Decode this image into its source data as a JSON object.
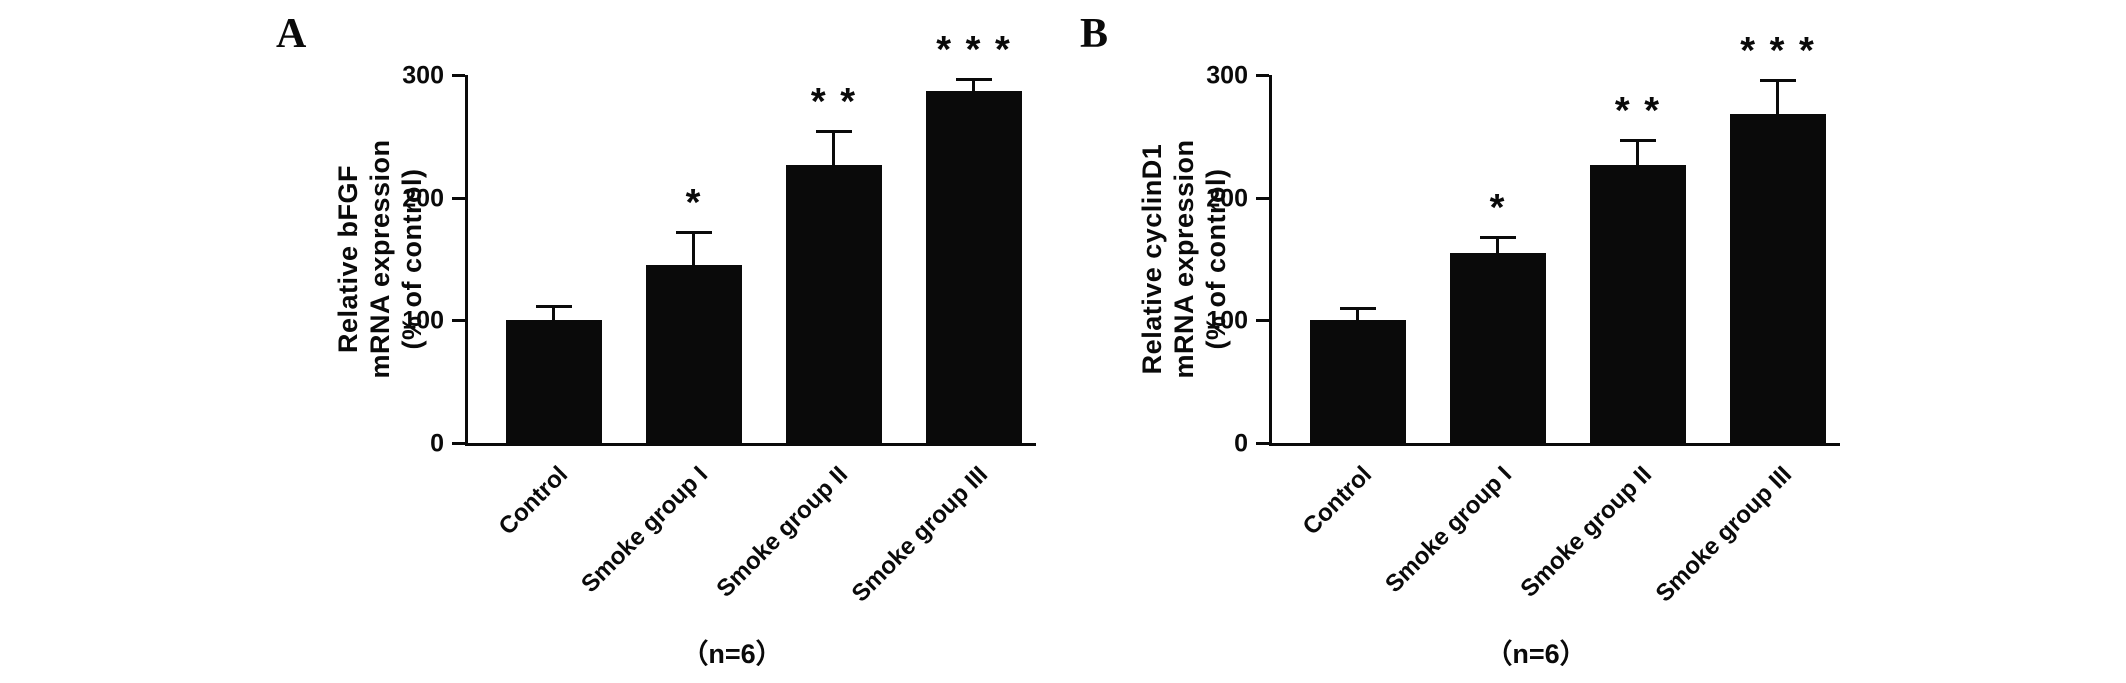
{
  "panels": [
    {
      "label": "A"
    },
    {
      "label": "B"
    }
  ],
  "chart_data": [
    {
      "type": "bar",
      "panel": "A",
      "title": "",
      "ylabel": "Relative bFGF mRNA expression (% of control)",
      "ylabel_lines": [
        "Relative bFGF",
        "mRNA expression",
        "(% of control)"
      ],
      "xlabel": "",
      "categories": [
        "Control",
        "Smoke group I",
        "Smoke group II",
        "Smoke group III"
      ],
      "values": [
        100,
        145,
        227,
        287
      ],
      "errors_upper": [
        12,
        27,
        27,
        10
      ],
      "significance": [
        "",
        "*",
        "* *",
        "* * *"
      ],
      "ylim": [
        0,
        300
      ],
      "yticks": [
        0,
        100,
        200,
        300
      ],
      "note": "（n=6）",
      "bar_color": "#0a0a0a",
      "grid": false,
      "legend": false
    },
    {
      "type": "bar",
      "panel": "B",
      "title": "",
      "ylabel": "Relative cyclinD1 mRNA expression (% of control)",
      "ylabel_lines": [
        "Relative cyclinD1",
        "mRNA expression",
        "(% of control)"
      ],
      "xlabel": "",
      "categories": [
        "Control",
        "Smoke group I",
        "Smoke group II",
        "Smoke group III"
      ],
      "values": [
        100,
        155,
        227,
        268
      ],
      "errors_upper": [
        10,
        13,
        20,
        28
      ],
      "significance": [
        "",
        "*",
        "* *",
        "* * *"
      ],
      "ylim": [
        0,
        300
      ],
      "yticks": [
        0,
        100,
        200,
        300
      ],
      "note": "（n=6）",
      "bar_color": "#0a0a0a",
      "grid": false,
      "legend": false
    }
  ]
}
